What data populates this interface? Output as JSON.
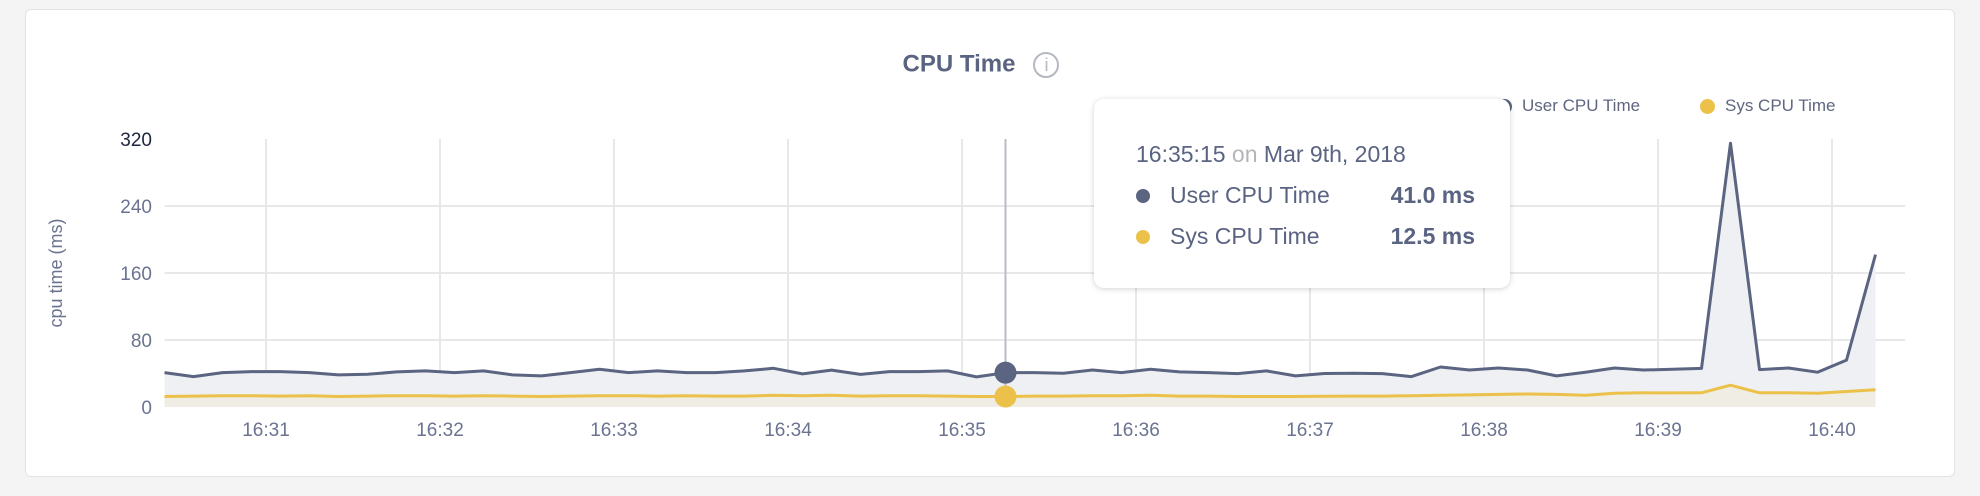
{
  "chart_data": {
    "type": "area",
    "title": "CPU Time",
    "ylabel": "cpu time (ms)",
    "xlabel": "",
    "ylim": [
      0,
      320
    ],
    "yticks": [
      "0",
      "80",
      "160",
      "240",
      "320"
    ],
    "xticks": [
      "16:31",
      "16:32",
      "16:33",
      "16:34",
      "16:35",
      "16:36",
      "16:37",
      "16:38",
      "16:39",
      "16:40"
    ],
    "grid": true,
    "legend_position": "top-right",
    "x_start": "16:30:25",
    "x_interval_seconds": 10,
    "series": [
      {
        "name": "User CPU Time",
        "color": "#5b6480",
        "fill": "#eef0f3",
        "values": [
          41.1,
          36.3,
          41.1,
          42.3,
          42.3,
          41.1,
          38.3,
          39.0,
          41.9,
          43.1,
          41.1,
          43.1,
          38.3,
          37.1,
          41.1,
          45.0,
          41.1,
          43.1,
          41.1,
          41.1,
          43.1,
          46.2,
          39.5,
          44.0,
          38.9,
          42.3,
          42.3,
          43.1,
          36.0,
          41.0,
          41.1,
          40.3,
          44.2,
          41.1,
          45.0,
          41.9,
          41.1,
          39.9,
          43.1,
          37.1,
          40.0,
          40.3,
          39.9,
          36.3,
          47.8,
          44.2,
          46.6,
          44.2,
          37.1,
          41.5,
          46.6,
          44.2,
          45.0,
          46.1,
          315,
          44.6,
          46.6,
          41.5,
          56,
          182
        ]
      },
      {
        "name": "Sys CPU Time",
        "color": "#ecc14a",
        "fill": "#efede4",
        "values": [
          12.5,
          13,
          13.5,
          13.5,
          13,
          13.5,
          12.5,
          13,
          13.5,
          13.5,
          13,
          13.5,
          13,
          12.5,
          13,
          13.5,
          13.5,
          13,
          13.5,
          13,
          13,
          14,
          13.5,
          14,
          13,
          13.5,
          13.5,
          13,
          12.5,
          12.5,
          13,
          13,
          13.5,
          13.5,
          14,
          13,
          13,
          12.5,
          12.5,
          12.5,
          12.8,
          13,
          13,
          13.5,
          14,
          14.5,
          15,
          15.5,
          15,
          14,
          16.5,
          17,
          16.8,
          17,
          26,
          17,
          17,
          16.5,
          18.5,
          20.5
        ]
      }
    ]
  },
  "legend": {
    "user": "User CPU Time",
    "sys": "Sys CPU Time"
  },
  "info_icon": "i",
  "tooltip": {
    "time": "16:35:15",
    "on": "on",
    "date": "Mar 9th, 2018",
    "rows": [
      {
        "label": "User CPU Time",
        "value": "41.0 ms",
        "color": "#5b6480"
      },
      {
        "label": "Sys CPU Time",
        "value": "12.5 ms",
        "color": "#ecc14a"
      }
    ]
  }
}
